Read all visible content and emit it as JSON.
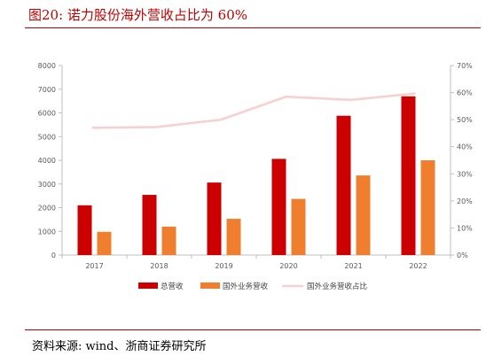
{
  "header": {
    "title": "图20:   诺力股份海外营收占比为 60%"
  },
  "footer": {
    "source": "资料来源: wind、浙商证券研究所"
  },
  "colors": {
    "total": "#cc0000",
    "overseas": "#ef7f2e",
    "ratio": "#f7d0d0",
    "accent": "#c00000"
  },
  "chart_data": {
    "type": "bar",
    "categories": [
      "2017",
      "2018",
      "2019",
      "2020",
      "2021",
      "2022"
    ],
    "series": [
      {
        "name": "总营收",
        "kind": "bar",
        "axis": "left",
        "values": [
          2100,
          2540,
          3060,
          4060,
          5880,
          6700
        ]
      },
      {
        "name": "国外业务营收",
        "kind": "bar",
        "axis": "left",
        "values": [
          980,
          1200,
          1530,
          2370,
          3360,
          4000
        ]
      },
      {
        "name": "国外业务营收占比",
        "kind": "line",
        "axis": "right",
        "values": [
          0.47,
          0.473,
          0.5,
          0.585,
          0.573,
          0.597
        ]
      }
    ],
    "y_left": {
      "min": 0,
      "max": 8000,
      "step": 1000,
      "ticks": [
        "0",
        "1000",
        "2000",
        "3000",
        "4000",
        "5000",
        "6000",
        "7000",
        "8000"
      ]
    },
    "y_right": {
      "min": 0,
      "max": 0.7,
      "step": 0.1,
      "ticks": [
        "0%",
        "10%",
        "20%",
        "30%",
        "40%",
        "50%",
        "60%",
        "70%"
      ]
    },
    "grid": false,
    "legend": "bottom"
  }
}
